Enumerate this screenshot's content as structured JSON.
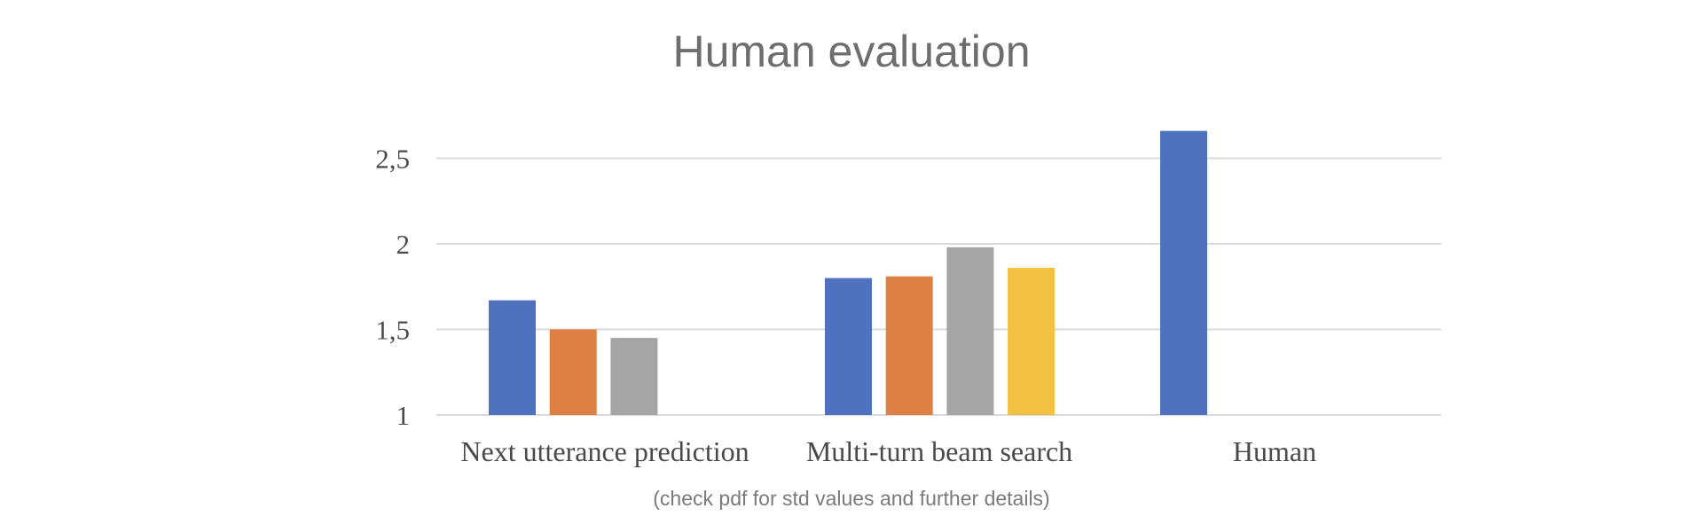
{
  "chart_data": {
    "type": "bar",
    "title": "Human evaluation",
    "xlabel": "",
    "ylabel": "",
    "ylim": [
      1,
      2.85
    ],
    "yticks": [
      1,
      1.5,
      2,
      2.5
    ],
    "ytick_labels": [
      "1",
      "1,5",
      "2",
      "2,5"
    ],
    "grid": true,
    "categories": [
      "Next utterance prediction",
      "Multi-turn beam search",
      "Human"
    ],
    "series": [
      {
        "color": "#4f71be",
        "values": [
          1.67,
          1.8,
          2.66
        ]
      },
      {
        "color": "#dd8043",
        "values": [
          1.5,
          1.81,
          null
        ]
      },
      {
        "color": "#a5a5a5",
        "values": [
          1.45,
          1.98,
          null
        ]
      },
      {
        "color": "#f3c141",
        "values": [
          null,
          1.86,
          null
        ]
      }
    ],
    "annotations": [
      "(check pdf for std values and further details)"
    ]
  }
}
